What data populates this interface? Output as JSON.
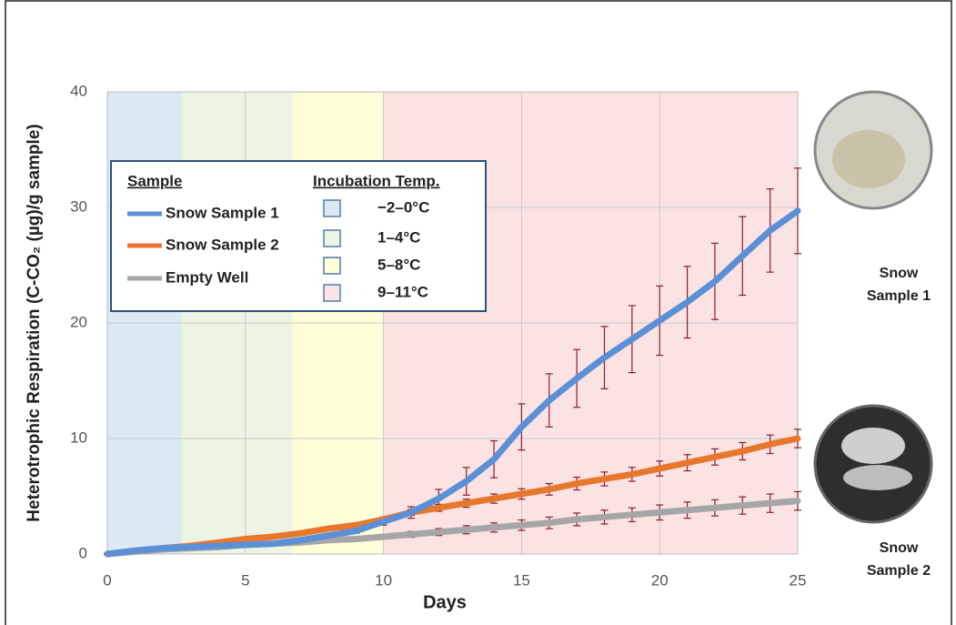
{
  "chart_data": {
    "type": "line",
    "y_label": "Heterotrophic Respiration (C-CO₂ (µg)/g sample)",
    "x_label": "Days",
    "x": [
      0,
      1,
      2,
      3,
      4,
      5,
      6,
      7,
      8,
      9,
      10,
      11,
      12,
      13,
      14,
      15,
      16,
      17,
      18,
      19,
      20,
      21,
      22,
      23,
      24,
      25
    ],
    "series": [
      {
        "name": "Snow Sample 1",
        "color": "#5b8fd6",
        "values": [
          0,
          0.3,
          0.5,
          0.6,
          0.7,
          0.8,
          0.9,
          1.2,
          1.6,
          2.0,
          2.8,
          3.6,
          4.8,
          6.3,
          8.2,
          11.0,
          13.3,
          15.2,
          17.0,
          18.6,
          20.2,
          21.8,
          23.6,
          25.8,
          28.0,
          29.7
        ],
        "errors": [
          0,
          0.05,
          0.05,
          0.1,
          0.1,
          0.1,
          0.1,
          0.15,
          0.2,
          0.2,
          0.3,
          0.5,
          0.8,
          1.2,
          1.6,
          2.0,
          2.3,
          2.5,
          2.7,
          2.9,
          3.0,
          3.1,
          3.3,
          3.4,
          3.6,
          3.7
        ]
      },
      {
        "name": "Snow Sample 2",
        "color": "#e8772e",
        "values": [
          0,
          0.3,
          0.5,
          0.7,
          1.0,
          1.3,
          1.5,
          1.8,
          2.2,
          2.5,
          3.0,
          3.6,
          4.0,
          4.4,
          4.8,
          5.2,
          5.6,
          6.1,
          6.5,
          6.9,
          7.4,
          7.9,
          8.4,
          8.9,
          9.5,
          10.0
        ],
        "errors": [
          0,
          0.05,
          0.05,
          0.1,
          0.1,
          0.1,
          0.1,
          0.1,
          0.15,
          0.15,
          0.2,
          0.25,
          0.3,
          0.35,
          0.4,
          0.45,
          0.5,
          0.55,
          0.6,
          0.6,
          0.65,
          0.7,
          0.7,
          0.75,
          0.8,
          0.8
        ]
      },
      {
        "name": "Empty Well",
        "color": "#a6a6a6",
        "values": [
          0,
          0.2,
          0.4,
          0.5,
          0.6,
          0.8,
          0.9,
          1.0,
          1.2,
          1.3,
          1.5,
          1.7,
          1.9,
          2.1,
          2.3,
          2.5,
          2.7,
          3.0,
          3.2,
          3.4,
          3.6,
          3.8,
          4.0,
          4.2,
          4.4,
          4.6
        ],
        "errors": [
          0,
          0.05,
          0.05,
          0.05,
          0.1,
          0.1,
          0.1,
          0.1,
          0.15,
          0.15,
          0.2,
          0.25,
          0.3,
          0.35,
          0.4,
          0.45,
          0.5,
          0.55,
          0.6,
          0.6,
          0.65,
          0.7,
          0.7,
          0.75,
          0.8,
          0.8
        ]
      }
    ],
    "error_color": "#8a1c2e",
    "legend_title": "Sample",
    "bands_title": "Incubation Temp.",
    "bands": [
      {
        "name": "−2–0°C",
        "from": 0,
        "to": 2.7,
        "color": "#dce9f5",
        "edge": "#4f7fae"
      },
      {
        "name": "1–4°C",
        "from": 2.7,
        "to": 6.7,
        "color": "#eef4e4",
        "edge": "#4f7fae"
      },
      {
        "name": "5–8°C",
        "from": 6.7,
        "to": 10,
        "color": "#fefed8",
        "edge": "#4f7fae"
      },
      {
        "name": "9–11°C",
        "from": 10,
        "to": 25,
        "color": "#fbe3e3",
        "edge": "#4f7fae"
      }
    ],
    "xlim": [
      0,
      25
    ],
    "xticks": [
      0,
      5,
      10,
      15,
      20,
      25
    ],
    "ylim": [
      0,
      40
    ],
    "yticks": [
      0,
      10,
      20,
      30,
      40
    ],
    "grid": true,
    "legend_position": "upper left",
    "images": [
      {
        "label": "Snow Sample 1"
      },
      {
        "label": "Snow Sample 2"
      }
    ]
  }
}
